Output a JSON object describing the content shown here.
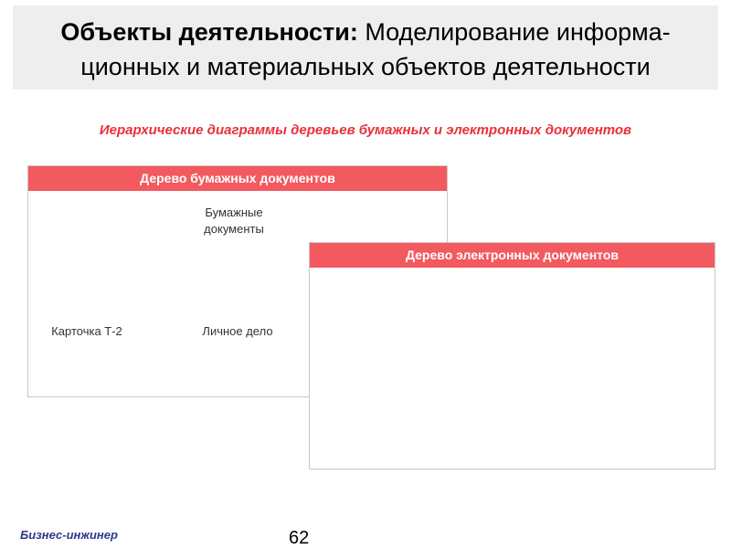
{
  "slide": {
    "title_bold": "Объекты деятельности:",
    "title_rest": " Моделирование информа-ционных и материальных объектов деятельности",
    "subtitle": "Иерархические диаграммы деревьев бумажных и электронных документов"
  },
  "paper_tree": {
    "header": "Дерево бумажных документов",
    "root_line1": "Бумажные",
    "root_line2": "документы",
    "child_1": "Карточка Т-2",
    "child_2": "Личное дело"
  },
  "electronic_tree": {
    "header": "Дерево электронных документов"
  },
  "footer": {
    "brand": "Бизнес-инжинер",
    "page_number": "62"
  },
  "colors": {
    "header_bar": "#f25a5f",
    "subtitle": "#e8303a",
    "brand": "#2b3a8c",
    "title_bg": "#eeeeee"
  }
}
